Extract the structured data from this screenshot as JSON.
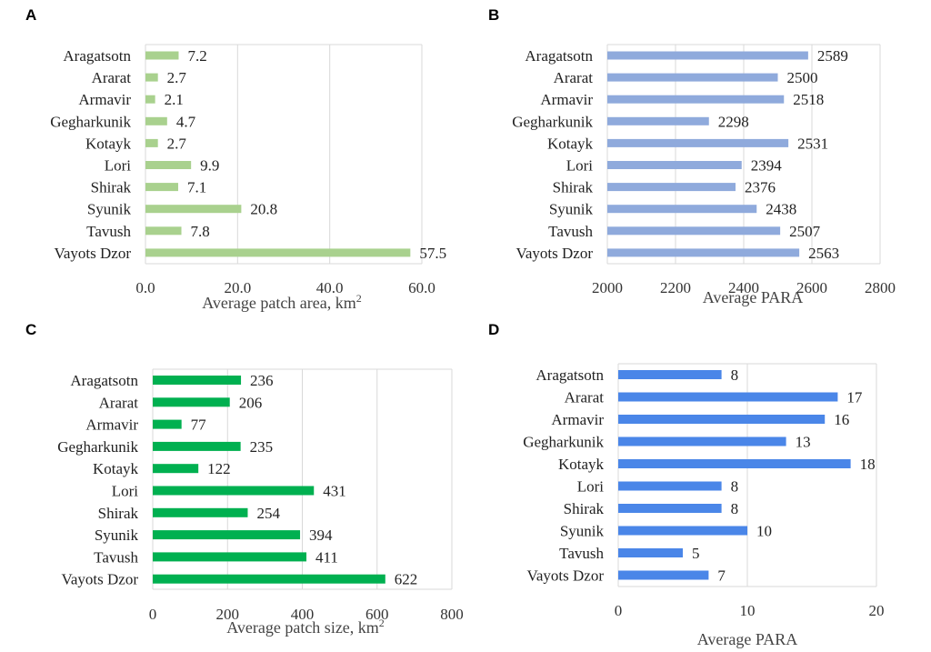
{
  "chart_data": [
    {
      "panel": "A",
      "type": "bar",
      "orientation": "horizontal",
      "categories": [
        "Aragatsotn",
        "Ararat",
        "Armavir",
        "Gegharkunik",
        "Kotayk",
        "Lori",
        "Shirak",
        "Syunik",
        "Tavush",
        "Vayots Dzor"
      ],
      "values": [
        7.2,
        2.7,
        2.1,
        4.7,
        2.7,
        9.9,
        7.1,
        20.8,
        7.8,
        57.5
      ],
      "value_labels": [
        "7.2",
        "2.7",
        "2.1",
        "4.7",
        "2.7",
        "9.9",
        "7.1",
        "20.8",
        "7.8",
        "57.5"
      ],
      "xlim": [
        0,
        60
      ],
      "xticks": [
        "0.0",
        "20.0",
        "40.0",
        "60.0"
      ],
      "xlabel": "Average patch area, km",
      "xlabel_sup": "2",
      "color": "#a9d18e",
      "grid": true
    },
    {
      "panel": "B",
      "type": "bar",
      "orientation": "horizontal",
      "categories": [
        "Aragatsotn",
        "Ararat",
        "Armavir",
        "Gegharkunik",
        "Kotayk",
        "Lori",
        "Shirak",
        "Syunik",
        "Tavush",
        "Vayots Dzor"
      ],
      "values": [
        2589,
        2500,
        2518,
        2298,
        2531,
        2394,
        2376,
        2438,
        2507,
        2563
      ],
      "value_labels": [
        "2589",
        "2500",
        "2518",
        "2298",
        "2531",
        "2394",
        "2376",
        "2438",
        "2507",
        "2563"
      ],
      "xlim": [
        2000,
        2800
      ],
      "xticks": [
        "2000",
        "2200",
        "2400",
        "2600",
        "2800"
      ],
      "xlabel": "Average PARA",
      "xlabel_sup": "",
      "color": "#8faadc",
      "grid": true
    },
    {
      "panel": "C",
      "type": "bar",
      "orientation": "horizontal",
      "categories": [
        "Aragatsotn",
        "Ararat",
        "Armavir",
        "Gegharkunik",
        "Kotayk",
        "Lori",
        "Shirak",
        "Syunik",
        "Tavush",
        "Vayots Dzor"
      ],
      "values": [
        236,
        206,
        77,
        235,
        122,
        431,
        254,
        394,
        411,
        622
      ],
      "value_labels": [
        "236",
        "206",
        "77",
        "235",
        "122",
        "431",
        "254",
        "394",
        "411",
        "622"
      ],
      "xlim": [
        0,
        800
      ],
      "xticks": [
        "0",
        "200",
        "400",
        "600",
        "800"
      ],
      "xlabel": "Average patch size, km",
      "xlabel_sup": "2",
      "color": "#00b050",
      "grid": true
    },
    {
      "panel": "D",
      "type": "bar",
      "orientation": "horizontal",
      "categories": [
        "Aragatsotn",
        "Ararat",
        "Armavir",
        "Gegharkunik",
        "Kotayk",
        "Lori",
        "Shirak",
        "Syunik",
        "Tavush",
        "Vayots Dzor"
      ],
      "values": [
        8,
        17,
        16,
        13,
        18,
        8,
        8,
        10,
        5,
        7
      ],
      "value_labels": [
        "8",
        "17",
        "16",
        "13",
        "18",
        "8",
        "8",
        "10",
        "5",
        "7"
      ],
      "xlim": [
        0,
        20
      ],
      "xticks": [
        "0",
        "10",
        "20"
      ],
      "xlabel": "Average PARA",
      "xlabel_sup": "",
      "color": "#4a86e8",
      "grid": true
    }
  ]
}
